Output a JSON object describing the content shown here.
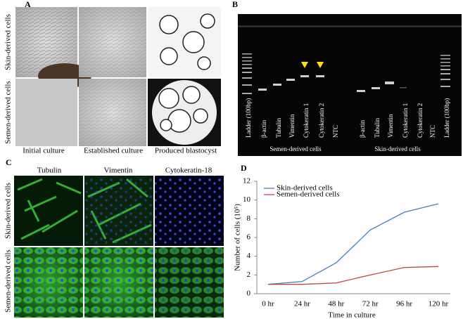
{
  "panel_a": {
    "label": "A",
    "row_labels": [
      "Skin-derived cells",
      "Semen-derived cells"
    ],
    "column_labels": [
      "Initial culture",
      "Established culture",
      "Produced blastocyst"
    ]
  },
  "panel_b": {
    "label": "B",
    "lanes": [
      "Ladder (100bp)",
      "β-actin",
      "Tubulin",
      "Vimentin",
      "Cytokeratin 1",
      "Cytokeratin 2",
      "NTC",
      "β-actin",
      "Tubulin",
      "Vimentin",
      "Cytokeratin 1",
      "Cytokeratin 2",
      "NTC",
      "Ladder (100bp)"
    ],
    "groups": [
      "Semen-derived cells",
      "Skin-derived cells"
    ]
  },
  "panel_c": {
    "label": "C",
    "column_labels": [
      "Tubulin",
      "Vimentin",
      "Cytokeratin-18"
    ],
    "row_labels": [
      "Skin-derived cells",
      "Semen-derived cells"
    ]
  },
  "chart_data": {
    "type": "line",
    "panel_label": "D",
    "x_label": "Time in culture",
    "y_label": "Number of cells (10⁵)",
    "categories": [
      "0 hr",
      "24 hr",
      "48 hr",
      "72 hr",
      "96 hr",
      "120 hr"
    ],
    "series": [
      {
        "name": "Skin-derived cells",
        "color": "#4a7ebb",
        "values": [
          1,
          1.3,
          3.3,
          6.8,
          8.7,
          9.6
        ]
      },
      {
        "name": "Semen-derived cells",
        "color": "#be4b48",
        "values": [
          1,
          1.0,
          1.15,
          2.0,
          2.8,
          2.9
        ]
      }
    ],
    "ylim": [
      0,
      12
    ],
    "yticks": [
      0,
      2,
      4,
      6,
      8,
      10,
      12
    ],
    "grid": false,
    "legend": "upper-left"
  }
}
